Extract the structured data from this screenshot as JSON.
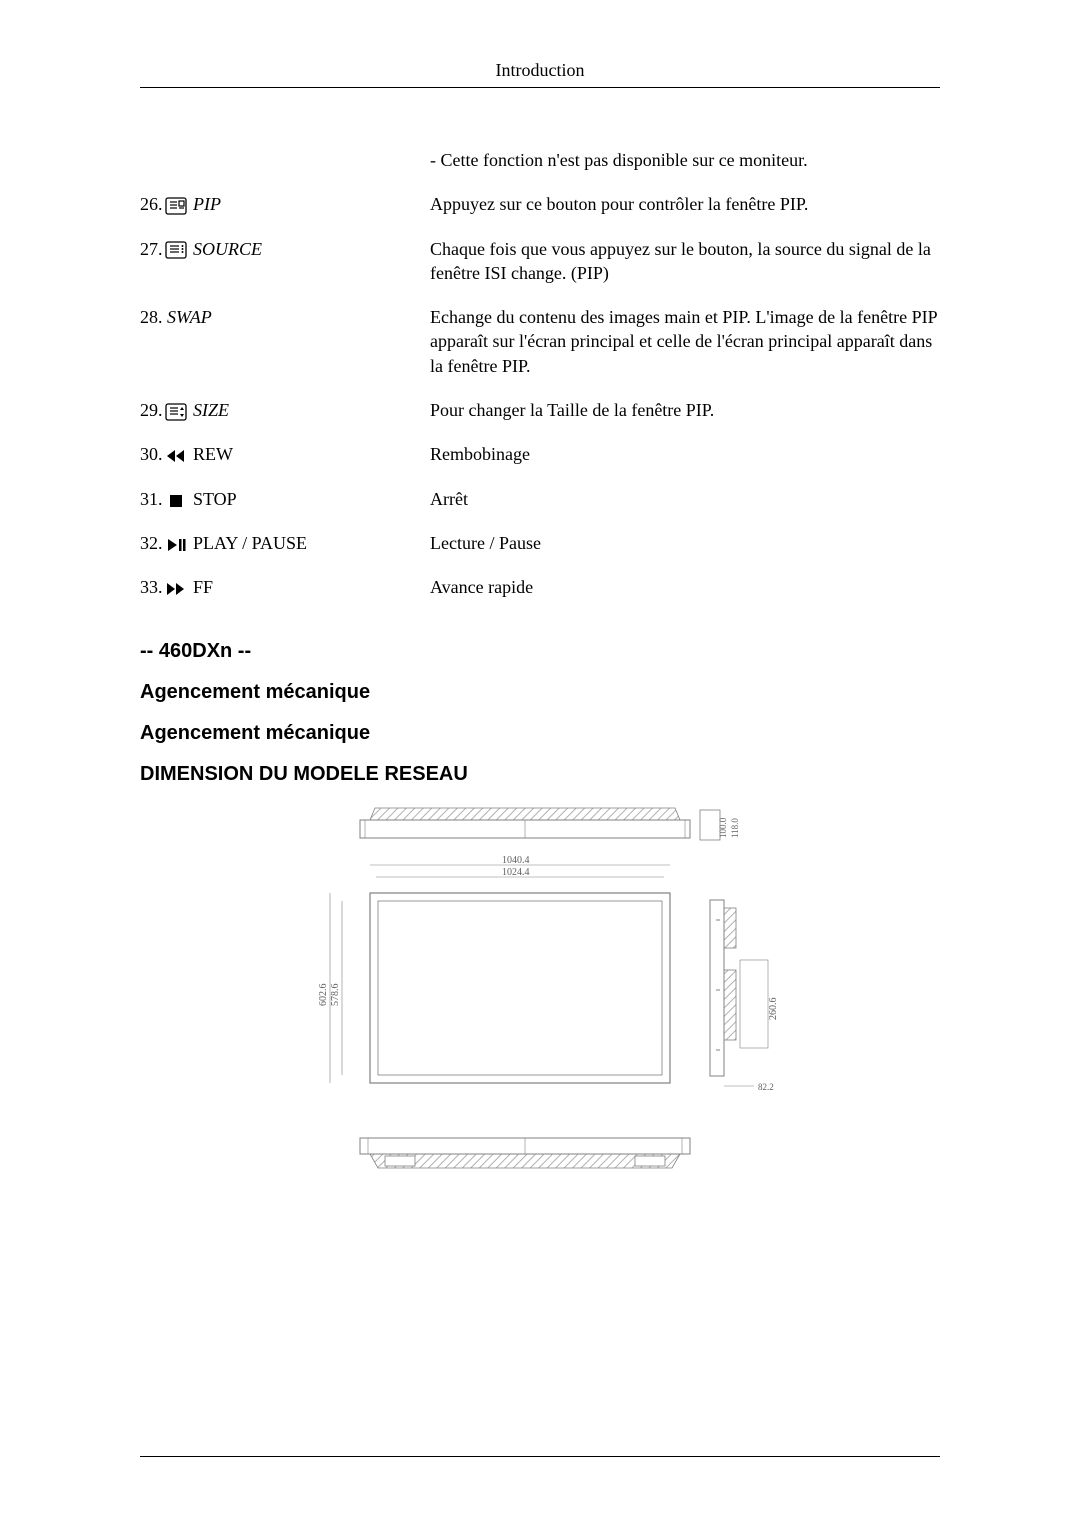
{
  "header": {
    "title": "Introduction"
  },
  "items": [
    {
      "num": "",
      "icon": "none",
      "name": "",
      "italic": false,
      "desc": "- Cette fonction n'est pas disponible sur ce moniteur."
    },
    {
      "num": "26.",
      "icon": "pip",
      "name": " PIP",
      "italic": true,
      "desc": "Appuyez sur ce bouton pour contrôler la fenêtre PIP."
    },
    {
      "num": "27.",
      "icon": "source",
      "name": " SOURCE",
      "italic": true,
      "desc": "Chaque fois que vous appuyez sur le bouton, la source du signal de la fenêtre ISI change. (PIP)"
    },
    {
      "num": "28.",
      "icon": "none",
      "name": " SWAP",
      "italic": true,
      "desc": "Echange du contenu des images main et PIP. L'image de la fenêtre PIP apparaît sur l'écran principal et celle de l'écran principal apparaît dans la fenêtre PIP."
    },
    {
      "num": "29.",
      "icon": "size",
      "name": " SIZE",
      "italic": true,
      "desc": "Pour changer la Taille de la fenêtre PIP."
    },
    {
      "num": "30.",
      "icon": "rew",
      "name": " REW",
      "italic": false,
      "desc": "Rembobinage"
    },
    {
      "num": "31.",
      "icon": "stop",
      "name": " STOP",
      "italic": false,
      "desc": "Arrêt"
    },
    {
      "num": "32.",
      "icon": "playpause",
      "name": " PLAY / PAUSE",
      "italic": false,
      "desc": "Lecture / Pause"
    },
    {
      "num": "33.",
      "icon": "ff",
      "name": " FF",
      "italic": false,
      "desc": "Avance rapide"
    }
  ],
  "sections": {
    "model": "-- 460DXn --",
    "h1": "Agencement mécanique",
    "h2": "Agencement mécanique",
    "h3": "DIMENSION DU MODELE RESEAU"
  },
  "diagram": {
    "top_width": "1040.4",
    "inner_width": "1024.4",
    "left_height_outer": "602.6",
    "left_height_inner": "578.6",
    "right_depth_top1": "100.0",
    "right_depth_top2": "118.0",
    "right_side_height": "260.6",
    "right_small": "82.2",
    "colors": {
      "line": "#808080",
      "hatch": "#b0b0b0",
      "text": "#606060",
      "bg": "#ffffff"
    }
  }
}
